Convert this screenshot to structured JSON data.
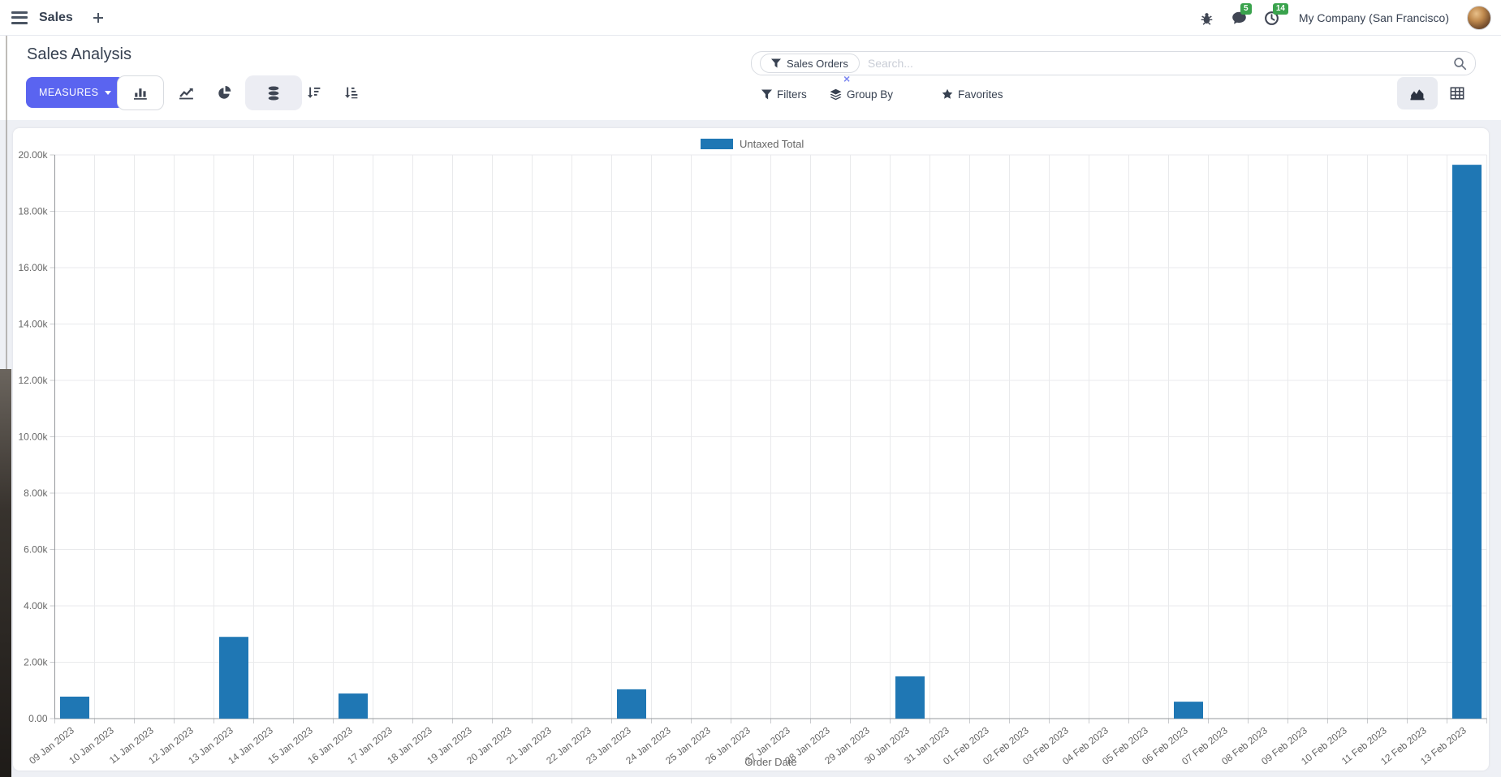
{
  "navbar": {
    "app_name": "Sales",
    "company": "My Company (San Francisco)",
    "message_badge": "5",
    "activity_badge": "14"
  },
  "control_panel": {
    "title": "Sales Analysis",
    "measures_button": "MEASURES",
    "search": {
      "facet_label": "Sales Orders",
      "facet_remove": "×",
      "placeholder": "Search..."
    },
    "filters_label": "Filters",
    "group_by_label": "Group By",
    "favorites_label": "Favorites"
  },
  "colors": {
    "primary_button": "#5A64F0",
    "badge_green": "#3AA34D",
    "bar_blue": "#1f77b4"
  },
  "chart_data": {
    "type": "bar",
    "title": "",
    "xlabel": "Order Date",
    "ylabel": "",
    "ylim": [
      0,
      20000
    ],
    "ytick_step": 2000,
    "ytick_labels": [
      "0.00",
      "2.00k",
      "4.00k",
      "6.00k",
      "8.00k",
      "10.00k",
      "12.00k",
      "14.00k",
      "16.00k",
      "18.00k",
      "20.00k"
    ],
    "grid": true,
    "legend_position": "top",
    "categories": [
      "09 Jan 2023",
      "10 Jan 2023",
      "11 Jan 2023",
      "12 Jan 2023",
      "13 Jan 2023",
      "14 Jan 2023",
      "15 Jan 2023",
      "16 Jan 2023",
      "17 Jan 2023",
      "18 Jan 2023",
      "19 Jan 2023",
      "20 Jan 2023",
      "21 Jan 2023",
      "22 Jan 2023",
      "23 Jan 2023",
      "24 Jan 2023",
      "25 Jan 2023",
      "26 Jan 2023",
      "27 Jan 2023",
      "28 Jan 2023",
      "29 Jan 2023",
      "30 Jan 2023",
      "31 Jan 2023",
      "01 Feb 2023",
      "02 Feb 2023",
      "03 Feb 2023",
      "04 Feb 2023",
      "05 Feb 2023",
      "06 Feb 2023",
      "07 Feb 2023",
      "08 Feb 2023",
      "09 Feb 2023",
      "10 Feb 2023",
      "11 Feb 2023",
      "12 Feb 2023",
      "13 Feb 2023"
    ],
    "series": [
      {
        "name": "Untaxed Total",
        "color": "#1f77b4",
        "values": [
          780,
          0,
          0,
          0,
          2900,
          0,
          0,
          890,
          0,
          0,
          0,
          0,
          0,
          0,
          1040,
          0,
          0,
          0,
          0,
          0,
          0,
          1500,
          0,
          0,
          0,
          0,
          0,
          0,
          600,
          0,
          0,
          0,
          0,
          0,
          0,
          19650
        ]
      }
    ]
  }
}
